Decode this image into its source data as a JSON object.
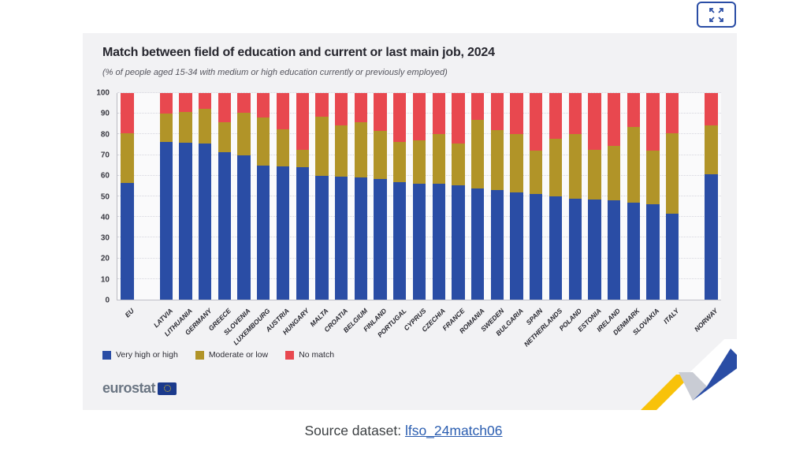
{
  "window": {
    "expand_button": "expand-fullscreen"
  },
  "header": {
    "title": "Match between field of education and current or last main job, 2024",
    "subtitle": "(% of people aged 15-34 with medium or high education currently or previously employed)"
  },
  "chart_data": {
    "type": "bar",
    "stacked": true,
    "title": "Match between field of education and current or last main job, 2024",
    "subtitle": "(% of people aged 15-34 with medium or high education currently or previously employed)",
    "ylim": [
      0,
      100
    ],
    "yticks": [
      0,
      10,
      20,
      30,
      40,
      50,
      60,
      70,
      80,
      90,
      100
    ],
    "grid": "horizontal-dotted",
    "legend_position": "bottom-left",
    "categories": [
      "EU",
      "",
      "LATVIA",
      "LITHUANIA",
      "GERMANY",
      "GREECE",
      "SLOVENIA",
      "LUXEMBOURG",
      "AUSTRIA",
      "HUNGARY",
      "MALTA",
      "CROATIA",
      "BELGIUM",
      "FINLAND",
      "PORTUGAL",
      "CYPRUS",
      "CZECHIA",
      "FRANCE",
      "ROMANIA",
      "SWEDEN",
      "BULGARIA",
      "SPAIN",
      "NETHERLANDS",
      "POLAND",
      "ESTONIA",
      "IRELAND",
      "DENMARK",
      "SLOVAKIA",
      "ITALY",
      "",
      "NORWAY"
    ],
    "series": [
      {
        "name": "Very high or high",
        "color": "#2a4da5",
        "values": [
          56.5,
          null,
          76.5,
          76,
          75.5,
          71.5,
          70,
          65,
          64.5,
          64,
          60,
          59.5,
          59,
          58.5,
          57,
          56,
          56,
          55.5,
          54,
          53,
          52,
          51,
          50,
          49,
          48.5,
          48,
          47,
          46,
          41.5,
          null,
          60.5
        ]
      },
      {
        "name": "Moderate or low",
        "color": "#b19428",
        "values": [
          24,
          null,
          13.5,
          15,
          17,
          14.5,
          20.5,
          23,
          18,
          8.5,
          28.5,
          25,
          27,
          23,
          19.5,
          21,
          24,
          20,
          33,
          29,
          28,
          21,
          28,
          31,
          24,
          26.5,
          36.5,
          26,
          39,
          null,
          24
        ]
      },
      {
        "name": "No match",
        "color": "#e8484f",
        "values": [
          19.5,
          null,
          10,
          9,
          7.5,
          14,
          9.5,
          12,
          17.5,
          27.5,
          11.5,
          15.5,
          14,
          18.5,
          23.5,
          23,
          20,
          24.5,
          13,
          18,
          20,
          28,
          22,
          20,
          27.5,
          25.5,
          16.5,
          28,
          19.5,
          null,
          15.5
        ]
      }
    ]
  },
  "branding": {
    "logo_text": "eurostat"
  },
  "footer": {
    "source_label": "Source dataset: ",
    "source_link": "lfso_24match06"
  }
}
